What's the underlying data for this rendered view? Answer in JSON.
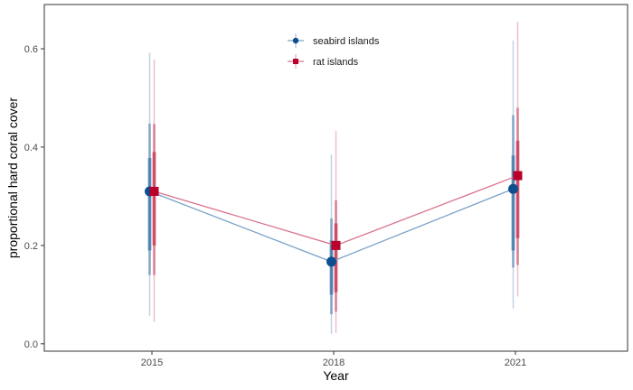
{
  "chart_data": {
    "type": "line",
    "xlabel": "Year",
    "ylabel": "proportional hard coral cover",
    "categories": [
      "2015",
      "2018",
      "2021"
    ],
    "ylim": [
      -0.015,
      0.69
    ],
    "yticks": [
      "0.0",
      "0.2",
      "0.4",
      "0.6"
    ],
    "ytick_values": [
      0.0,
      0.2,
      0.4,
      0.6
    ],
    "grid": false,
    "legend_position": "top-center",
    "series": [
      {
        "name": "seabird islands",
        "color": "#0b4f8f",
        "line_color": "#7ba3c8",
        "marker": "circle",
        "values": [
          0.31,
          0.167,
          0.315
        ],
        "ci_outer": [
          [
            0.057,
            0.592
          ],
          [
            0.02,
            0.385
          ],
          [
            0.072,
            0.617
          ]
        ],
        "ci_mid": [
          [
            0.14,
            0.448
          ],
          [
            0.06,
            0.255
          ],
          [
            0.155,
            0.465
          ]
        ],
        "ci_inner": [
          [
            0.19,
            0.378
          ],
          [
            0.1,
            0.21
          ],
          [
            0.19,
            0.383
          ]
        ]
      },
      {
        "name": "rat islands",
        "color": "#b8002a",
        "line_color": "#d9738c",
        "marker": "square",
        "values": [
          0.31,
          0.2,
          0.342
        ],
        "ci_outer": [
          [
            0.045,
            0.578
          ],
          [
            0.022,
            0.433
          ],
          [
            0.096,
            0.655
          ]
        ],
        "ci_mid": [
          [
            0.14,
            0.447
          ],
          [
            0.065,
            0.292
          ],
          [
            0.16,
            0.48
          ]
        ],
        "ci_inner": [
          [
            0.2,
            0.39
          ],
          [
            0.105,
            0.245
          ],
          [
            0.215,
            0.413
          ]
        ]
      }
    ]
  }
}
